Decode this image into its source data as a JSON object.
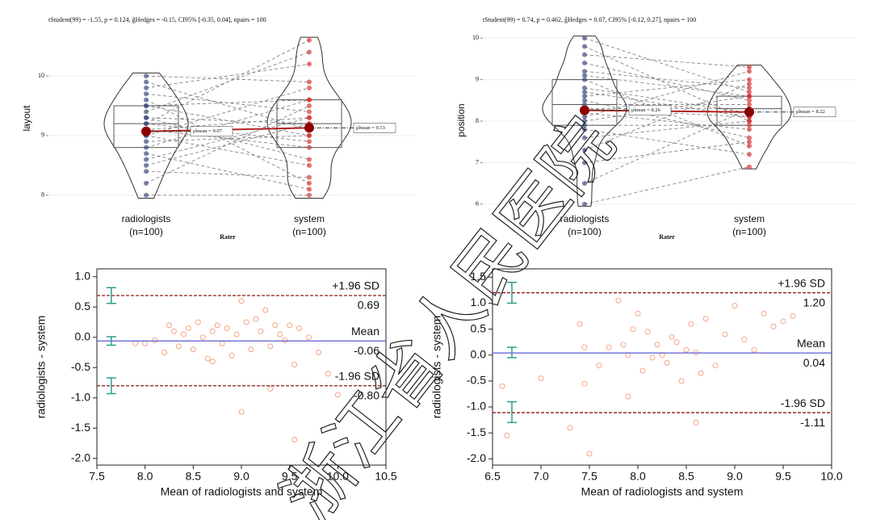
{
  "watermark": "浙江省人民医院",
  "chart_data": [
    {
      "type": "paired-violin",
      "subtitle": "tStudent(99) = -1.55, p = 0.124, ĝHedges = -0.15, CI95% [-0.35, 0.04], npairs = 100",
      "ylabel": "layout",
      "xlabel": "Rater",
      "categories": [
        [
          "radiologists",
          "(n=100)"
        ],
        [
          "system",
          "(n=100)"
        ]
      ],
      "ylim": [
        7.78,
        10.8
      ],
      "yticks": [
        8,
        9,
        10
      ],
      "grid": true,
      "series": [
        {
          "name": "radiologists",
          "color": "#34427a",
          "values": [
            8.0,
            8.2,
            8.4,
            8.5,
            8.7,
            8.8,
            8.9,
            9.0,
            9.0,
            9.1,
            9.2,
            9.2,
            9.3,
            9.3,
            9.4,
            9.5,
            9.5,
            9.6,
            9.7,
            9.8,
            9.9,
            10.0,
            8.6,
            9.1
          ]
        },
        {
          "name": "system",
          "color": "#d62728",
          "values": [
            8.0,
            9.5,
            8.3,
            9.2,
            8.1,
            9.6,
            9.0,
            8.5,
            9.8,
            9.3,
            8.9,
            10.6,
            9.2,
            8.6,
            10.4,
            9.0,
            9.6,
            8.2,
            9.4,
            10.2,
            9.1,
            9.9,
            9.3,
            8.8
          ]
        }
      ],
      "means": [
        9.07,
        9.13
      ],
      "mean_labels": [
        "μ̂mean = 9.07",
        "μ̂mean = 9.13"
      ]
    },
    {
      "type": "paired-violin",
      "subtitle": "tStudent(99) = 0.74, p = 0.462, ĝHedges = 0.07, CI95% [-0.12, 0.27], npairs = 100",
      "ylabel": "position",
      "xlabel": "Rater",
      "categories": [
        [
          "radiologists",
          "(n=100)"
        ],
        [
          "system",
          "(n=100)"
        ]
      ],
      "ylim": [
        5.9,
        10.14
      ],
      "yticks": [
        6,
        7,
        8,
        9,
        10
      ],
      "grid": true,
      "series": [
        {
          "name": "radiologists",
          "color": "#34427a",
          "values": [
            6.0,
            6.5,
            7.0,
            7.3,
            7.6,
            7.8,
            8.0,
            8.1,
            8.2,
            8.3,
            8.4,
            8.5,
            8.6,
            8.8,
            9.0,
            9.2,
            9.4,
            9.6,
            9.8,
            10.0,
            7.9,
            8.3,
            8.7,
            9.1
          ]
        },
        {
          "name": "system",
          "color": "#d62728",
          "values": [
            6.9,
            8.3,
            7.5,
            8.9,
            8.0,
            7.2,
            8.6,
            9.2,
            7.8,
            8.1,
            8.4,
            7.6,
            9.0,
            8.2,
            7.4,
            8.8,
            8.5,
            9.3,
            8.0,
            8.7,
            7.9,
            8.3,
            8.1,
            8.6
          ]
        }
      ],
      "means": [
        8.26,
        8.22
      ],
      "mean_labels": [
        "μ̂mean = 8.26",
        "μ̂mean = 8.22"
      ]
    },
    {
      "type": "bland-altman",
      "xlabel": "Mean of radiologists and system",
      "ylabel": "radiologists - system",
      "xlim": [
        7.5,
        10.5
      ],
      "ylim": [
        -2.11,
        1.13
      ],
      "xticks": [
        7.5,
        {
          "value": 8,
          "label": "8.0"
        },
        8.5,
        {
          "value": 9,
          "label": "9.0"
        },
        9.5,
        {
          "value": 10,
          "label": "10.0"
        },
        10.5
      ],
      "yticks": [
        {
          "value": 1,
          "label": "1.0"
        },
        0.5,
        {
          "value": 0,
          "label": "0.0"
        },
        -0.5,
        {
          "value": -1,
          "label": "-1.0"
        },
        -1.5,
        {
          "value": -2,
          "label": "-2.0"
        }
      ],
      "color": "#f4a582",
      "x": [
        7.9,
        8.0,
        8.1,
        8.2,
        8.25,
        8.3,
        8.35,
        8.4,
        8.45,
        8.5,
        8.55,
        8.6,
        8.65,
        8.7,
        8.75,
        8.8,
        8.85,
        8.9,
        8.95,
        9.0,
        9.05,
        9.1,
        9.15,
        9.2,
        9.25,
        9.3,
        9.35,
        9.4,
        9.45,
        9.5,
        9.55,
        9.6,
        9.7,
        9.8,
        9.9,
        10.0,
        9.0,
        9.3,
        9.55,
        8.7
      ],
      "y": [
        -0.1,
        -0.1,
        -0.05,
        -0.25,
        0.2,
        0.1,
        -0.15,
        0.05,
        0.15,
        -0.2,
        0.25,
        0.0,
        -0.35,
        0.1,
        0.2,
        -0.1,
        0.15,
        -0.3,
        0.05,
        0.6,
        0.25,
        -0.2,
        0.3,
        0.1,
        0.45,
        -0.15,
        0.2,
        0.05,
        -0.05,
        0.2,
        -0.45,
        0.15,
        0.0,
        -0.25,
        -0.6,
        -0.95,
        -1.23,
        -0.85,
        -1.69,
        -0.4
      ],
      "lines": {
        "names": [
          "+1.96 SD",
          "Mean",
          "-1.96 SD"
        ],
        "values": [
          0.69,
          -0.06,
          -0.8
        ],
        "value_labels": [
          "0.69",
          "-0.06",
          "-0.80"
        ]
      },
      "ci_x": 7.65,
      "ci_low": [
        0.56,
        -0.13,
        -0.93
      ],
      "ci_high": [
        0.82,
        0.01,
        -0.67
      ]
    },
    {
      "type": "bland-altman",
      "xlabel": "Mean of radiologists and system",
      "ylabel": "radiologists - system",
      "xlim": [
        6.5,
        10.0
      ],
      "ylim": [
        -2.12,
        1.66
      ],
      "xticks": [
        6.5,
        {
          "value": 7,
          "label": "7.0"
        },
        7.5,
        {
          "value": 8,
          "label": "8.0"
        },
        8.5,
        {
          "value": 9,
          "label": "9.0"
        },
        9.5,
        {
          "value": 10,
          "label": "10.0"
        }
      ],
      "yticks": [
        1.5,
        {
          "value": 1,
          "label": "1.0"
        },
        0.5,
        {
          "value": 0,
          "label": "0.0"
        },
        -0.5,
        {
          "value": -1,
          "label": "-1.0"
        },
        -1.5,
        {
          "value": -2,
          "label": "-2.0"
        }
      ],
      "color": "#f4a582",
      "x": [
        6.6,
        6.65,
        7.0,
        7.3,
        7.4,
        7.45,
        7.5,
        7.6,
        7.7,
        7.8,
        7.85,
        7.9,
        7.95,
        8.0,
        8.05,
        8.1,
        8.15,
        8.2,
        8.25,
        8.3,
        8.35,
        8.4,
        8.45,
        8.5,
        8.55,
        8.6,
        8.65,
        8.7,
        8.8,
        8.9,
        9.0,
        9.1,
        9.2,
        9.3,
        9.4,
        9.5,
        9.6,
        7.45,
        8.6,
        7.9
      ],
      "y": [
        -0.6,
        -1.55,
        -0.45,
        -1.4,
        0.6,
        -0.55,
        -1.9,
        -0.2,
        0.15,
        1.05,
        0.2,
        -0.8,
        0.5,
        0.8,
        -0.3,
        0.45,
        -0.05,
        0.2,
        0.0,
        -0.15,
        0.35,
        0.25,
        -0.5,
        0.1,
        0.6,
        0.05,
        -0.35,
        0.7,
        -0.2,
        0.4,
        0.95,
        0.3,
        0.1,
        0.8,
        0.55,
        0.65,
        0.75,
        0.15,
        -1.3,
        0.0
      ],
      "lines": {
        "names": [
          "+1.96 SD",
          "Mean",
          "-1.96 SD"
        ],
        "values": [
          1.2,
          0.04,
          -1.11
        ],
        "value_labels": [
          "1.20",
          "0.04",
          "-1.11"
        ]
      },
      "ci_x": 6.7,
      "ci_low": [
        1.0,
        -0.05,
        -1.3
      ],
      "ci_high": [
        1.4,
        0.15,
        -0.9
      ]
    }
  ]
}
